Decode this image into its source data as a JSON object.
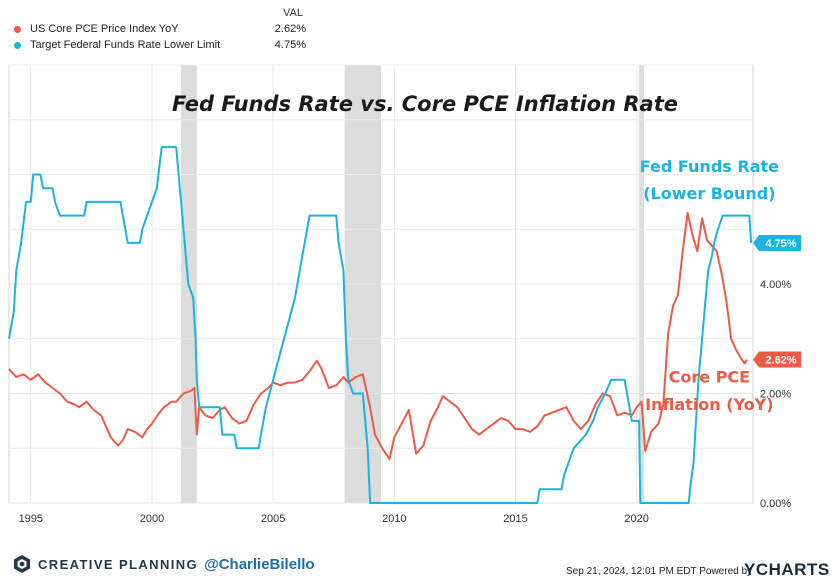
{
  "legend": {
    "header": "VAL",
    "items": [
      {
        "name": "US Core PCE Price Index YoY",
        "value": "2.62%",
        "color": "#ee5a45"
      },
      {
        "name": "Target Federal Funds Rate Lower Limit",
        "value": "4.75%",
        "color": "#19b4e0"
      }
    ]
  },
  "footer": {
    "brand": "CREATIVE PLANNING",
    "handle": "@CharlieBilello",
    "timestamp": "Sep 21, 2024, 12:01 PM EDT Powered by",
    "provider": "YCHARTS"
  },
  "chart_data": {
    "type": "line",
    "title": "Fed Funds Rate vs. Core PCE Inflation Rate",
    "xlabel": "",
    "ylabel": "",
    "xlim": [
      1994.1,
      2024.8
    ],
    "ylim": [
      0,
      8
    ],
    "x_ticks": [
      "1995",
      "2000",
      "2005",
      "2010",
      "2015",
      "2020"
    ],
    "x_tick_values": [
      1995,
      2000,
      2005,
      2010,
      2015,
      2020
    ],
    "y_ticks": [
      "0.00%",
      "2.00%",
      "4.00%"
    ],
    "y_tick_values": [
      0,
      2,
      4
    ],
    "grid": true,
    "recessions": [
      [
        2001.2,
        2001.85
      ],
      [
        2007.95,
        2009.45
      ],
      [
        2020.1,
        2020.3
      ]
    ],
    "annotations": [
      {
        "text": "Fed Funds Rate",
        "series": 1,
        "x": 2023.0,
        "y": 6.05
      },
      {
        "text": "(Lower Bound)",
        "series": 1,
        "x": 2023.0,
        "y": 5.55
      },
      {
        "text": "Core PCE",
        "series": 0,
        "x": 2023.0,
        "y": 2.2
      },
      {
        "text": "Inflation (YoY)",
        "series": 0,
        "x": 2023.0,
        "y": 1.7
      }
    ],
    "series": [
      {
        "name": "US Core PCE Price Index YoY",
        "color": "#ee5a45",
        "last_label": "2.62%",
        "points": [
          [
            1994.1,
            2.45
          ],
          [
            1994.4,
            2.3
          ],
          [
            1994.7,
            2.35
          ],
          [
            1995.0,
            2.25
          ],
          [
            1995.3,
            2.35
          ],
          [
            1995.6,
            2.2
          ],
          [
            1995.9,
            2.1
          ],
          [
            1996.2,
            2.0
          ],
          [
            1996.5,
            1.85
          ],
          [
            1996.8,
            1.8
          ],
          [
            1997.0,
            1.75
          ],
          [
            1997.3,
            1.85
          ],
          [
            1997.6,
            1.7
          ],
          [
            1997.9,
            1.6
          ],
          [
            1998.1,
            1.4
          ],
          [
            1998.3,
            1.2
          ],
          [
            1998.6,
            1.05
          ],
          [
            1998.8,
            1.15
          ],
          [
            1999.0,
            1.35
          ],
          [
            1999.3,
            1.3
          ],
          [
            1999.6,
            1.2
          ],
          [
            1999.8,
            1.35
          ],
          [
            2000.0,
            1.45
          ],
          [
            2000.3,
            1.65
          ],
          [
            2000.5,
            1.75
          ],
          [
            2000.8,
            1.85
          ],
          [
            2001.0,
            1.85
          ],
          [
            2001.3,
            2.0
          ],
          [
            2001.6,
            2.05
          ],
          [
            2001.75,
            2.1
          ],
          [
            2001.85,
            1.25
          ],
          [
            2001.95,
            1.75
          ],
          [
            2002.2,
            1.6
          ],
          [
            2002.5,
            1.55
          ],
          [
            2002.8,
            1.7
          ],
          [
            2003.0,
            1.75
          ],
          [
            2003.3,
            1.55
          ],
          [
            2003.6,
            1.45
          ],
          [
            2003.9,
            1.5
          ],
          [
            2004.2,
            1.8
          ],
          [
            2004.5,
            2.0
          ],
          [
            2004.8,
            2.1
          ],
          [
            2005.0,
            2.2
          ],
          [
            2005.3,
            2.15
          ],
          [
            2005.6,
            2.2
          ],
          [
            2005.9,
            2.2
          ],
          [
            2006.2,
            2.25
          ],
          [
            2006.5,
            2.4
          ],
          [
            2006.8,
            2.6
          ],
          [
            2007.0,
            2.45
          ],
          [
            2007.3,
            2.1
          ],
          [
            2007.6,
            2.15
          ],
          [
            2007.9,
            2.3
          ],
          [
            2008.1,
            2.2
          ],
          [
            2008.4,
            2.3
          ],
          [
            2008.7,
            2.35
          ],
          [
            2009.0,
            1.75
          ],
          [
            2009.2,
            1.25
          ],
          [
            2009.5,
            1.0
          ],
          [
            2009.8,
            0.8
          ],
          [
            2010.0,
            1.2
          ],
          [
            2010.3,
            1.45
          ],
          [
            2010.6,
            1.7
          ],
          [
            2010.9,
            0.9
          ],
          [
            2011.2,
            1.05
          ],
          [
            2011.5,
            1.5
          ],
          [
            2011.8,
            1.75
          ],
          [
            2012.0,
            1.95
          ],
          [
            2012.3,
            1.85
          ],
          [
            2012.6,
            1.75
          ],
          [
            2012.9,
            1.55
          ],
          [
            2013.2,
            1.35
          ],
          [
            2013.5,
            1.25
          ],
          [
            2013.8,
            1.35
          ],
          [
            2014.1,
            1.45
          ],
          [
            2014.4,
            1.55
          ],
          [
            2014.7,
            1.5
          ],
          [
            2015.0,
            1.35
          ],
          [
            2015.3,
            1.35
          ],
          [
            2015.6,
            1.3
          ],
          [
            2015.9,
            1.4
          ],
          [
            2016.2,
            1.6
          ],
          [
            2016.5,
            1.65
          ],
          [
            2016.8,
            1.7
          ],
          [
            2017.1,
            1.75
          ],
          [
            2017.4,
            1.5
          ],
          [
            2017.7,
            1.35
          ],
          [
            2018.0,
            1.5
          ],
          [
            2018.3,
            1.8
          ],
          [
            2018.6,
            2.0
          ],
          [
            2018.9,
            1.95
          ],
          [
            2019.2,
            1.6
          ],
          [
            2019.5,
            1.65
          ],
          [
            2019.8,
            1.6
          ],
          [
            2020.0,
            1.75
          ],
          [
            2020.2,
            1.85
          ],
          [
            2020.35,
            0.95
          ],
          [
            2020.6,
            1.3
          ],
          [
            2020.9,
            1.45
          ],
          [
            2021.1,
            1.8
          ],
          [
            2021.3,
            3.1
          ],
          [
            2021.5,
            3.6
          ],
          [
            2021.7,
            3.8
          ],
          [
            2021.9,
            4.6
          ],
          [
            2022.1,
            5.3
          ],
          [
            2022.3,
            4.9
          ],
          [
            2022.5,
            4.6
          ],
          [
            2022.7,
            5.2
          ],
          [
            2022.9,
            4.8
          ],
          [
            2023.1,
            4.7
          ],
          [
            2023.3,
            4.6
          ],
          [
            2023.5,
            4.2
          ],
          [
            2023.7,
            3.7
          ],
          [
            2023.9,
            3.0
          ],
          [
            2024.1,
            2.8
          ],
          [
            2024.3,
            2.65
          ],
          [
            2024.45,
            2.55
          ],
          [
            2024.55,
            2.62
          ]
        ]
      },
      {
        "name": "Target Federal Funds Rate Lower Limit",
        "color": "#19b4e0",
        "last_label": "4.75%",
        "points": [
          [
            1994.1,
            3.0
          ],
          [
            1994.3,
            3.5
          ],
          [
            1994.4,
            4.25
          ],
          [
            1994.6,
            4.75
          ],
          [
            1994.8,
            5.5
          ],
          [
            1995.0,
            5.5
          ],
          [
            1995.1,
            6.0
          ],
          [
            1995.4,
            6.0
          ],
          [
            1995.5,
            5.75
          ],
          [
            1995.9,
            5.75
          ],
          [
            1996.0,
            5.5
          ],
          [
            1996.2,
            5.25
          ],
          [
            1997.2,
            5.25
          ],
          [
            1997.3,
            5.5
          ],
          [
            1998.7,
            5.5
          ],
          [
            1998.8,
            5.25
          ],
          [
            1998.9,
            5.0
          ],
          [
            1999.0,
            4.75
          ],
          [
            1999.5,
            4.75
          ],
          [
            1999.6,
            5.0
          ],
          [
            1999.8,
            5.25
          ],
          [
            2000.0,
            5.5
          ],
          [
            2000.2,
            5.75
          ],
          [
            2000.4,
            6.5
          ],
          [
            2000.5,
            6.5
          ],
          [
            2001.0,
            6.5
          ],
          [
            2001.1,
            6.0
          ],
          [
            2001.2,
            5.5
          ],
          [
            2001.3,
            5.0
          ],
          [
            2001.4,
            4.5
          ],
          [
            2001.5,
            4.0
          ],
          [
            2001.7,
            3.75
          ],
          [
            2001.8,
            3.0
          ],
          [
            2001.85,
            2.25
          ],
          [
            2001.95,
            1.75
          ],
          [
            2002.8,
            1.75
          ],
          [
            2002.9,
            1.25
          ],
          [
            2003.4,
            1.25
          ],
          [
            2003.5,
            1.0
          ],
          [
            2004.4,
            1.0
          ],
          [
            2004.5,
            1.25
          ],
          [
            2004.7,
            1.75
          ],
          [
            2005.0,
            2.25
          ],
          [
            2005.3,
            2.75
          ],
          [
            2005.6,
            3.25
          ],
          [
            2005.9,
            3.75
          ],
          [
            2006.2,
            4.5
          ],
          [
            2006.5,
            5.25
          ],
          [
            2007.6,
            5.25
          ],
          [
            2007.7,
            4.75
          ],
          [
            2007.9,
            4.25
          ],
          [
            2008.0,
            3.0
          ],
          [
            2008.1,
            2.25
          ],
          [
            2008.3,
            2.0
          ],
          [
            2008.7,
            2.0
          ],
          [
            2008.8,
            1.5
          ],
          [
            2008.9,
            1.0
          ],
          [
            2009.0,
            0.0
          ],
          [
            2015.9,
            0.0
          ],
          [
            2016.0,
            0.25
          ],
          [
            2016.9,
            0.25
          ],
          [
            2017.0,
            0.5
          ],
          [
            2017.2,
            0.75
          ],
          [
            2017.4,
            1.0
          ],
          [
            2017.9,
            1.25
          ],
          [
            2018.2,
            1.5
          ],
          [
            2018.4,
            1.75
          ],
          [
            2018.7,
            2.0
          ],
          [
            2018.95,
            2.25
          ],
          [
            2019.5,
            2.25
          ],
          [
            2019.6,
            2.0
          ],
          [
            2019.7,
            1.75
          ],
          [
            2019.8,
            1.5
          ],
          [
            2020.1,
            1.5
          ],
          [
            2020.15,
            0.0
          ],
          [
            2022.15,
            0.0
          ],
          [
            2022.2,
            0.25
          ],
          [
            2022.35,
            0.75
          ],
          [
            2022.45,
            1.5
          ],
          [
            2022.55,
            2.25
          ],
          [
            2022.7,
            3.0
          ],
          [
            2022.85,
            3.75
          ],
          [
            2022.95,
            4.25
          ],
          [
            2023.1,
            4.5
          ],
          [
            2023.2,
            4.75
          ],
          [
            2023.35,
            5.0
          ],
          [
            2023.55,
            5.25
          ],
          [
            2024.65,
            5.25
          ],
          [
            2024.72,
            4.75
          ]
        ]
      }
    ]
  }
}
